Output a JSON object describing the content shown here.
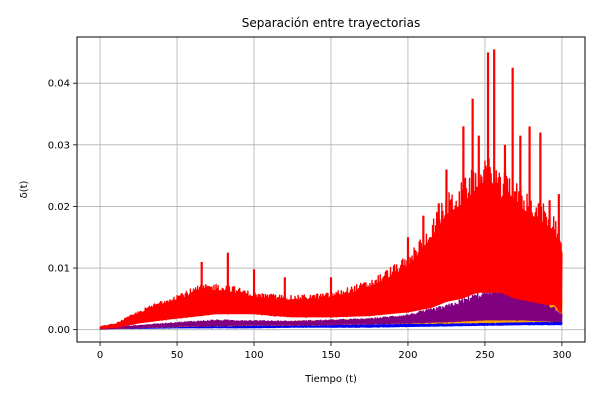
{
  "chart_data": {
    "type": "line",
    "title": "Separación entre trayectorias",
    "xlabel": "Tiempo (t)",
    "ylabel": "δ(t)",
    "xlim": [
      -15,
      315
    ],
    "ylim": [
      -0.002,
      0.0475
    ],
    "xticks": [
      0,
      50,
      100,
      150,
      200,
      250,
      300
    ],
    "yticks": [
      0.0,
      0.01,
      0.02,
      0.03,
      0.04
    ],
    "xtick_labels": [
      "0",
      "50",
      "100",
      "150",
      "200",
      "250",
      "300"
    ],
    "ytick_labels": [
      "0.00",
      "0.01",
      "0.02",
      "0.03",
      "0.04"
    ],
    "grid": true,
    "legend": "none",
    "series": [
      {
        "color": "#0000ff",
        "x": [
          0,
          10,
          25,
          50,
          75,
          100,
          125,
          150,
          175,
          200,
          225,
          250,
          275,
          300
        ],
        "low": [
          0.0001,
          0.0002,
          0.0002,
          0.0003,
          0.0003,
          0.0003,
          0.0004,
          0.0004,
          0.0004,
          0.0005,
          0.0006,
          0.0007,
          0.0008,
          0.0008
        ],
        "high": [
          0.0004,
          0.0004,
          0.0004,
          0.0005,
          0.0006,
          0.0006,
          0.0007,
          0.0007,
          0.0008,
          0.0009,
          0.001,
          0.0011,
          0.0012,
          0.0013
        ]
      },
      {
        "color": "#ffa500",
        "x": [
          0,
          10,
          25,
          50,
          75,
          100,
          125,
          150,
          175,
          200,
          225,
          250,
          275,
          300
        ],
        "low": [
          0.0001,
          0.0002,
          0.0003,
          0.0005,
          0.0006,
          0.0007,
          0.0007,
          0.0008,
          0.0009,
          0.001,
          0.001,
          0.0011,
          0.0012,
          0.0013
        ],
        "high": [
          0.0003,
          0.0004,
          0.0006,
          0.0009,
          0.0011,
          0.0012,
          0.0014,
          0.0015,
          0.0018,
          0.002,
          0.0024,
          0.003,
          0.005,
          0.006
        ]
      },
      {
        "color": "#800080",
        "x": [
          0,
          10,
          25,
          50,
          75,
          100,
          125,
          150,
          175,
          200,
          225,
          250,
          275,
          300
        ],
        "low": [
          0.0001,
          0.0002,
          0.0003,
          0.0005,
          0.0006,
          0.0007,
          0.0007,
          0.0008,
          0.0009,
          0.001,
          0.0012,
          0.0015,
          0.0015,
          0.0012
        ],
        "high": [
          0.0003,
          0.0004,
          0.0007,
          0.0012,
          0.0016,
          0.0015,
          0.0014,
          0.0016,
          0.0018,
          0.0025,
          0.004,
          0.0065,
          0.008,
          0.0025
        ]
      },
      {
        "color": "#ff0000",
        "x": [
          0,
          10,
          25,
          40,
          50,
          65,
          75,
          85,
          100,
          125,
          150,
          175,
          200,
          215,
          225,
          235,
          245,
          252,
          255,
          260,
          265,
          270,
          280,
          290,
          295,
          300
        ],
        "low": [
          0.0002,
          0.0003,
          0.001,
          0.0015,
          0.0018,
          0.0022,
          0.0025,
          0.0025,
          0.0025,
          0.002,
          0.002,
          0.0022,
          0.0028,
          0.0035,
          0.0045,
          0.005,
          0.006,
          0.006,
          0.006,
          0.006,
          0.0055,
          0.005,
          0.0045,
          0.004,
          0.004,
          0.0025
        ],
        "high": [
          0.0005,
          0.001,
          0.003,
          0.0048,
          0.0058,
          0.0072,
          0.0075,
          0.0072,
          0.006,
          0.0055,
          0.006,
          0.008,
          0.012,
          0.0175,
          0.022,
          0.024,
          0.027,
          0.029,
          0.028,
          0.025,
          0.0265,
          0.024,
          0.022,
          0.02,
          0.019,
          0.015
        ],
        "peaks": [
          {
            "x": 66,
            "y": 0.011
          },
          {
            "x": 83,
            "y": 0.0125
          },
          {
            "x": 100,
            "y": 0.0098
          },
          {
            "x": 120,
            "y": 0.0085
          },
          {
            "x": 150,
            "y": 0.0085
          },
          {
            "x": 200,
            "y": 0.015
          },
          {
            "x": 210,
            "y": 0.0185
          },
          {
            "x": 220,
            "y": 0.0205
          },
          {
            "x": 225,
            "y": 0.026
          },
          {
            "x": 236,
            "y": 0.033
          },
          {
            "x": 242,
            "y": 0.0375
          },
          {
            "x": 246,
            "y": 0.0315
          },
          {
            "x": 252,
            "y": 0.045
          },
          {
            "x": 256,
            "y": 0.0455
          },
          {
            "x": 263,
            "y": 0.03
          },
          {
            "x": 268,
            "y": 0.0425
          },
          {
            "x": 273,
            "y": 0.0315
          },
          {
            "x": 279,
            "y": 0.033
          },
          {
            "x": 286,
            "y": 0.032
          },
          {
            "x": 292,
            "y": 0.021
          },
          {
            "x": 298,
            "y": 0.022
          }
        ]
      }
    ]
  }
}
